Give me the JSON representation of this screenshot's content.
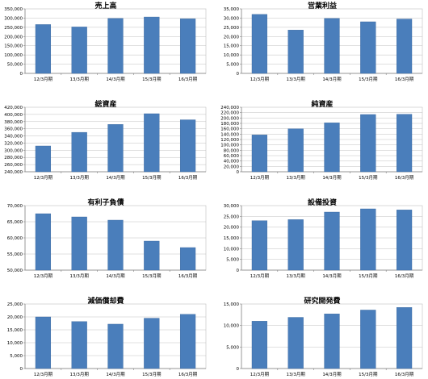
{
  "colors": {
    "bar": "#4a7ebb",
    "bar_edge": "#3a679e",
    "grid": "#c0c0c0",
    "axis": "#808080",
    "frame": "#bfbfbf"
  },
  "chart_data": [
    {
      "type": "bar",
      "title": "売上高",
      "categories": [
        "12/3月期",
        "13/3月期",
        "14/3月期",
        "15/3月期",
        "16/3月期"
      ],
      "values": [
        265000,
        252000,
        298000,
        306000,
        296000
      ],
      "ylim": [
        0,
        350000
      ],
      "ytick_step": 50000,
      "ytick_labels": [
        "0",
        "50,000",
        "100,000",
        "150,000",
        "200,000",
        "250,000",
        "300,000",
        "350,000"
      ],
      "grid": true
    },
    {
      "type": "bar",
      "title": "営業利益",
      "categories": [
        "12/3月期",
        "13/3月期",
        "14/3月期",
        "15/3月期",
        "16/3月期"
      ],
      "values": [
        32000,
        23500,
        29800,
        28000,
        29500
      ],
      "ylim": [
        0,
        35000
      ],
      "ytick_step": 5000,
      "ytick_labels": [
        "0",
        "5,000",
        "10,000",
        "15,000",
        "20,000",
        "25,000",
        "30,000",
        "35,000"
      ],
      "grid": true
    },
    {
      "type": "bar",
      "title": "総資産",
      "categories": [
        "12/3月期",
        "13/3月期",
        "14/3月期",
        "15/3月期",
        "16/3月期"
      ],
      "values": [
        312000,
        350000,
        372000,
        402000,
        385000
      ],
      "ylim": [
        240000,
        420000
      ],
      "ytick_step": 20000,
      "ytick_labels": [
        "240,000",
        "260,000",
        "280,000",
        "300,000",
        "320,000",
        "340,000",
        "360,000",
        "380,000",
        "400,000",
        "420,000"
      ],
      "grid": true
    },
    {
      "type": "bar",
      "title": "純資産",
      "categories": [
        "12/3月期",
        "13/3月期",
        "14/3月期",
        "15/3月期",
        "16/3月期"
      ],
      "values": [
        137000,
        160000,
        182000,
        213000,
        214000
      ],
      "ylim": [
        0,
        240000
      ],
      "ytick_step": 20000,
      "ytick_labels": [
        "0",
        "20,000",
        "40,000",
        "60,000",
        "80,000",
        "100,000",
        "120,000",
        "140,000",
        "160,000",
        "180,000",
        "200,000",
        "220,000",
        "240,000"
      ],
      "grid": true
    },
    {
      "type": "bar",
      "title": "有利子負債",
      "categories": [
        "12/3月期",
        "13/3月期",
        "14/3月期",
        "15/3月期",
        "16/3月期"
      ],
      "values": [
        67500,
        66500,
        65500,
        59000,
        57000
      ],
      "ylim": [
        50000,
        70000
      ],
      "ytick_step": 5000,
      "ytick_labels": [
        "50,000",
        "55,000",
        "60,000",
        "65,000",
        "70,000"
      ],
      "grid": true
    },
    {
      "type": "bar",
      "title": "設備投資",
      "categories": [
        "12/3月期",
        "13/3月期",
        "14/3月期",
        "15/3月期",
        "16/3月期"
      ],
      "values": [
        23000,
        23500,
        27000,
        28500,
        28000
      ],
      "ylim": [
        0,
        30000
      ],
      "ytick_step": 5000,
      "ytick_labels": [
        "0",
        "5,000",
        "10,000",
        "15,000",
        "20,000",
        "25,000",
        "30,000"
      ],
      "grid": true
    },
    {
      "type": "bar",
      "title": "減価償却費",
      "categories": [
        "12/3月期",
        "13/3月期",
        "14/3月期",
        "15/3月期",
        "16/3月期"
      ],
      "values": [
        20000,
        18200,
        17200,
        19500,
        21000
      ],
      "ylim": [
        0,
        25000
      ],
      "ytick_step": 5000,
      "ytick_labels": [
        "0",
        "5,000",
        "10,000",
        "15,000",
        "20,000",
        "25,000"
      ],
      "grid": true
    },
    {
      "type": "bar",
      "title": "研究開発費",
      "categories": [
        "12/3月期",
        "13/3月期",
        "14/3月期",
        "15/3月期",
        "16/3月期"
      ],
      "values": [
        11000,
        11900,
        12700,
        13600,
        14200
      ],
      "ylim": [
        0,
        15000
      ],
      "ytick_step": 5000,
      "ytick_labels": [
        "0",
        "5,000",
        "10,000",
        "15,000"
      ],
      "grid": true
    }
  ]
}
